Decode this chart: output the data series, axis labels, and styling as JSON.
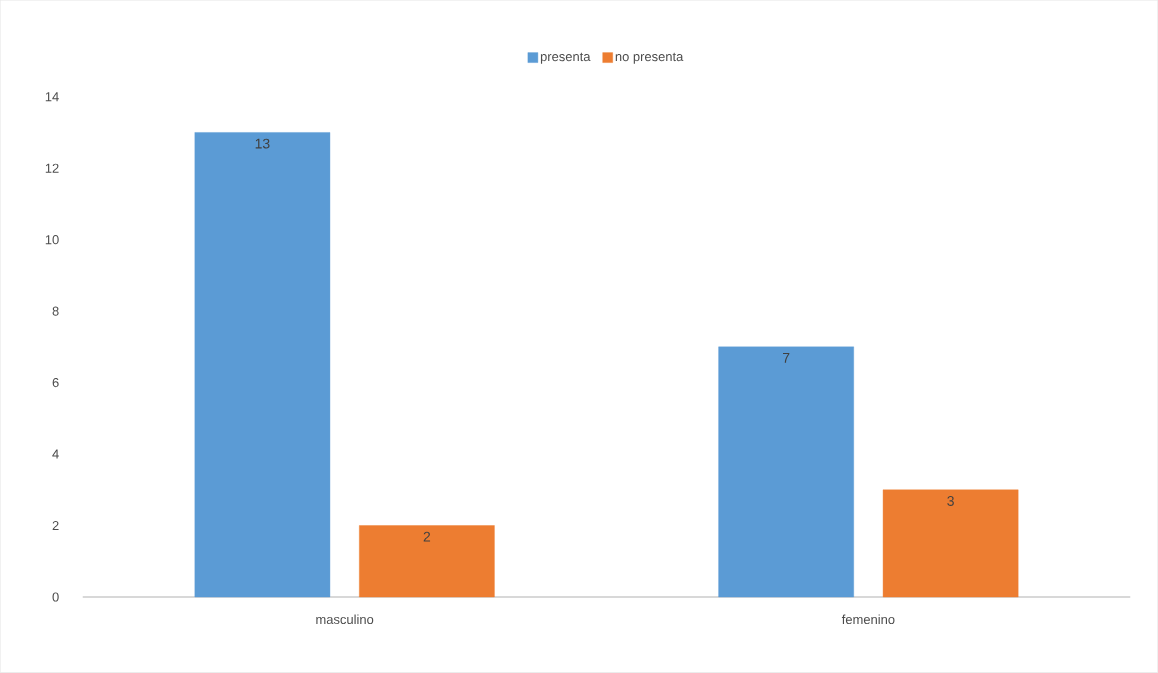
{
  "chart_data": {
    "type": "bar",
    "categories": [
      "masculino",
      "femenino"
    ],
    "series": [
      {
        "name": "presenta",
        "color": "#5b9bd5",
        "values": [
          13,
          7
        ]
      },
      {
        "name": "no presenta",
        "color": "#ed7d31",
        "values": [
          2,
          3
        ]
      }
    ],
    "ylim": [
      0,
      14
    ],
    "yticks": [
      0,
      2,
      4,
      6,
      8,
      10,
      12,
      14
    ],
    "grid": false,
    "legend": "top",
    "data_labels": true
  }
}
